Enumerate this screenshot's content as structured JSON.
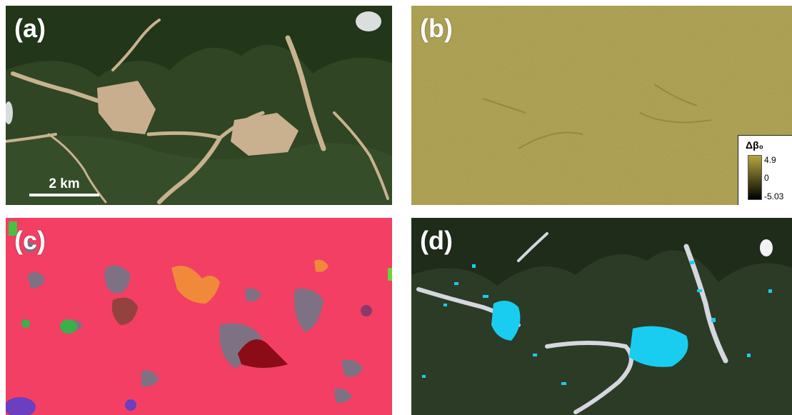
{
  "panels": [
    {
      "label": "(a)",
      "scale_bar": "2 km"
    },
    {
      "label": "(b)",
      "legend": {
        "title": "Δβ₀",
        "max": "4.9",
        "mid": "0",
        "min": "-5.03",
        "color_high": "#b6a63c",
        "color_low": "#000000"
      }
    },
    {
      "label": "(c)"
    },
    {
      "label": "(d)"
    }
  ],
  "colors": {
    "forest": "#2a3f1e",
    "landslide": "#c4b090",
    "sar_olive": "#a89a3e",
    "segment_background": "#f23f63",
    "segment_dark_red": "#8b0c17",
    "segment_orange": "#f08a3a",
    "detection_cyan": "#19cdf0"
  }
}
